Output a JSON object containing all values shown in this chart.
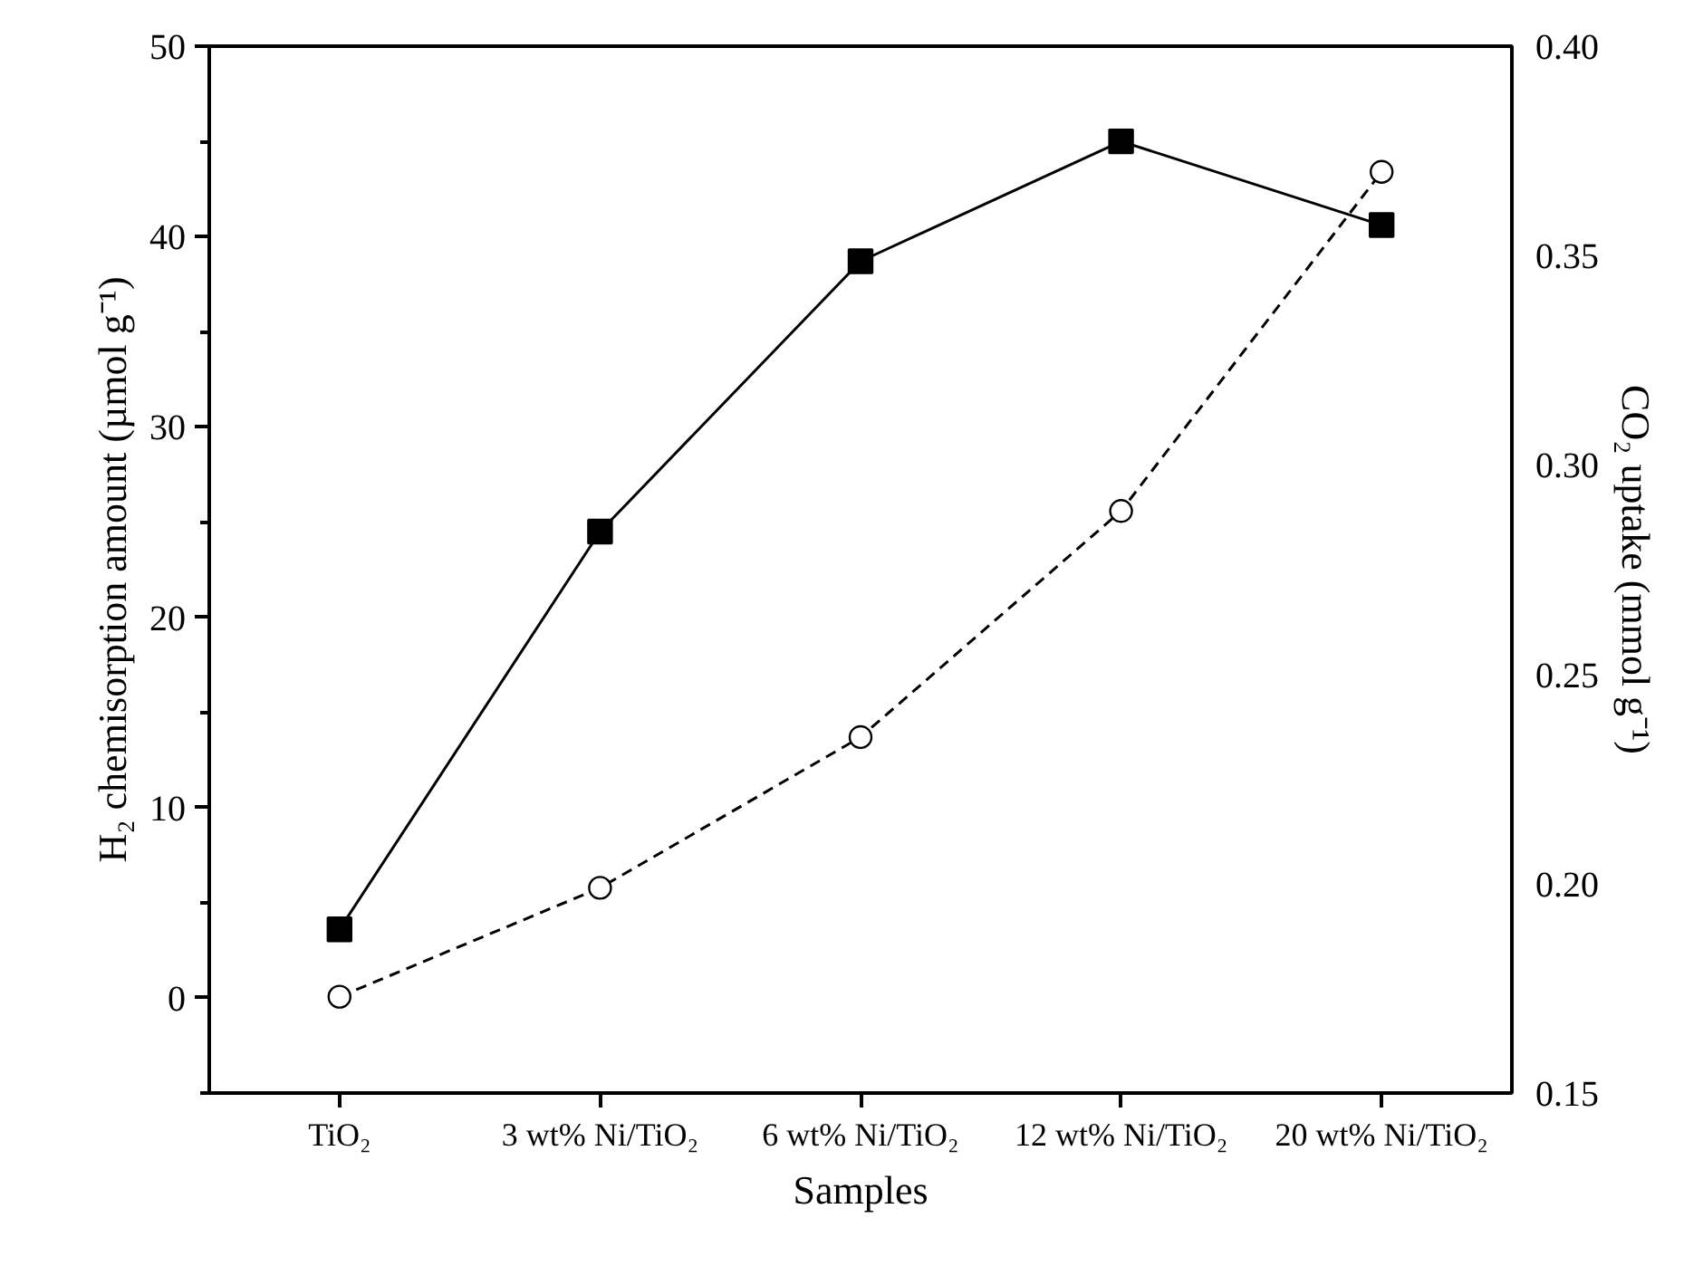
{
  "chart_data": {
    "type": "line",
    "xlabel": "Samples",
    "ylabel": "H₂ chemisorption amount (µmol g⁻¹)",
    "y2label": "CO₂ uptake (mmol g⁻¹)",
    "categories": [
      "TiO₂",
      "3 wt% Ni/TiO₂",
      "6 wt% Ni/TiO₂",
      "12 wt% Ni/TiO₂",
      "20 wt% Ni/TiO₂"
    ],
    "series": [
      {
        "color": "#000000",
        "values": [
          3.6,
          24.5,
          38.7,
          45.0,
          40.6
        ],
        "marker": "square",
        "line_style": "solid",
        "axis": "y"
      },
      {
        "color": "#000000",
        "values": [
          0.173,
          0.199,
          0.235,
          0.289,
          0.37
        ],
        "marker": "circle",
        "line_style": "dashed",
        "axis": "y2"
      }
    ],
    "ylim": [
      -5,
      50
    ],
    "yticks": [
      {
        "value": -5,
        "label": null
      },
      0,
      {
        "value": 5,
        "label": null
      },
      10,
      {
        "value": 15,
        "label": null
      },
      20,
      {
        "value": 25,
        "label": null
      },
      30,
      {
        "value": 35,
        "label": null
      },
      40,
      {
        "value": 45,
        "label": null
      },
      50
    ],
    "y2lim": [
      0.15,
      0.4
    ],
    "y2ticks": [
      {
        "value": 0.15,
        "label": "0.15"
      },
      {
        "value": 0.2,
        "label": "0.20"
      },
      {
        "value": 0.25,
        "label": "0.25"
      },
      {
        "value": 0.3,
        "label": "0.30"
      },
      {
        "value": 0.35,
        "label": "0.35"
      },
      {
        "value": 0.4,
        "label": "0.40"
      }
    ],
    "grid": false
  }
}
